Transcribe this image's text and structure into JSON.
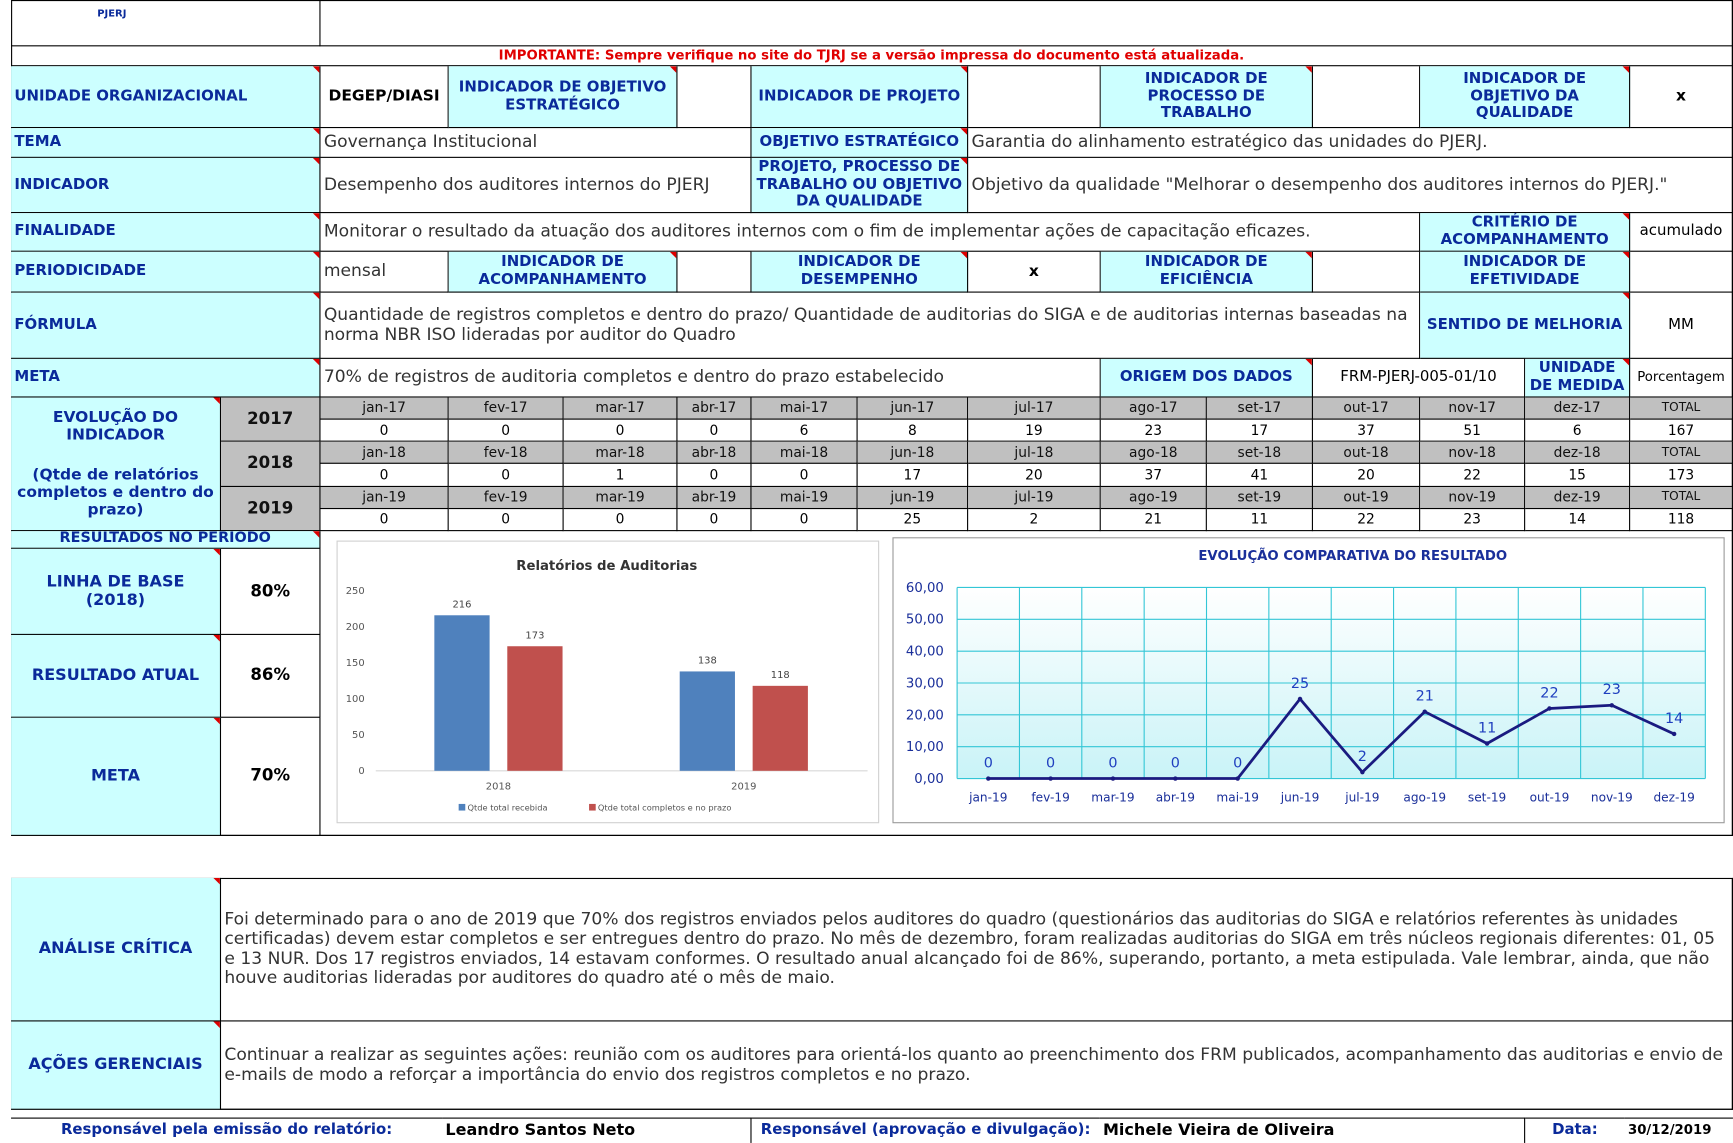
{
  "header": {
    "logo": "PJERJ",
    "notice": "IMPORTANTE: Sempre verifique no site do TJRJ se a versão impressa do documento está atualizada."
  },
  "form": {
    "unidade_label": "UNIDADE ORGANIZACIONAL",
    "unidade": "DEGEP/DIASI",
    "obj_estrategico_label": "INDICADOR DE OBJETIVO ESTRATÉGICO",
    "projeto_label": "INDICADOR DE PROJETO",
    "processo_label": "INDICADOR DE PROCESSO DE TRABALHO",
    "qualidade_label": "INDICADOR DE OBJETIVO DA QUALIDADE",
    "qualidade_mark": "x",
    "tema_label": "TEMA",
    "tema": "Governança Institucional",
    "objetivo_label": "OBJETIVO ESTRATÉGICO",
    "objetivo": "Garantia do alinhamento estratégico das unidades do PJERJ.",
    "indicador_label": "INDICADOR",
    "indicador": "Desempenho dos auditores internos do PJERJ",
    "projeto_processo_label": "PROJETO, PROCESSO DE TRABALHO OU OBJETIVO DA QUALIDADE",
    "projeto_processo": "Objetivo da qualidade \"Melhorar o desempenho dos auditores internos do PJERJ.\"",
    "finalidade_label": "FINALIDADE",
    "finalidade": "Monitorar o resultado da atuação dos auditores internos com o fim de implementar ações de capacitação eficazes.",
    "criterio_label": "CRITÉRIO DE ACOMPANHAMENTO",
    "criterio": "acumulado",
    "periodicidade_label": "PERIODICIDADE",
    "periodicidade": "mensal",
    "acompanhamento_label": "INDICADOR DE ACOMPANHAMENTO",
    "desempenho_label": "INDICADOR DE DESEMPENHO",
    "desempenho_mark": "x",
    "eficiencia_label": "INDICADOR DE EFICIÊNCIA",
    "efetividade_label": "INDICADOR DE EFETIVIDADE",
    "formula_label": "FÓRMULA",
    "formula": "Quantidade de registros completos e dentro do prazo/ Quantidade de auditorias do SIGA e de auditorias internas baseadas na norma NBR ISO lideradas por auditor do Quadro",
    "sentido_label": "SENTIDO DE MELHORIA",
    "sentido": "MM",
    "meta_label": "META",
    "meta": "70% de registros de auditoria completos e dentro do prazo estabelecido",
    "origem_label": "ORIGEM DOS DADOS",
    "origem": "FRM-PJERJ-005-01/10",
    "unidade_medida_label": "UNIDADE DE MEDIDA",
    "unidade_medida": "Porcentagem"
  },
  "evolution": {
    "label": "EVOLUÇÃO DO INDICADOR",
    "sublabel": "(Qtde de relatórios completos e dentro do prazo)",
    "years": [
      {
        "year": "2017",
        "months": [
          "jan-17",
          "fev-17",
          "mar-17",
          "abr-17",
          "mai-17",
          "jun-17",
          "jul-17",
          "ago-17",
          "set-17",
          "out-17",
          "nov-17",
          "dez-17",
          "TOTAL"
        ],
        "values": [
          0,
          0,
          0,
          0,
          6,
          8,
          19,
          23,
          17,
          37,
          51,
          6,
          167
        ]
      },
      {
        "year": "2018",
        "months": [
          "jan-18",
          "fev-18",
          "mar-18",
          "abr-18",
          "mai-18",
          "jun-18",
          "jul-18",
          "ago-18",
          "set-18",
          "out-18",
          "nov-18",
          "dez-18",
          "TOTAL"
        ],
        "values": [
          0,
          0,
          1,
          0,
          0,
          17,
          20,
          37,
          41,
          20,
          22,
          15,
          173
        ]
      },
      {
        "year": "2019",
        "months": [
          "jan-19",
          "fev-19",
          "mar-19",
          "abr-19",
          "mai-19",
          "jun-19",
          "jul-19",
          "ago-19",
          "set-19",
          "out-19",
          "nov-19",
          "dez-19",
          "TOTAL"
        ],
        "values": [
          0,
          0,
          0,
          0,
          0,
          25,
          2,
          21,
          11,
          22,
          23,
          14,
          118
        ]
      }
    ]
  },
  "results": {
    "label": "RESULTADOS NO PERÍODO",
    "items": [
      {
        "label": "LINHA DE  BASE (2018)",
        "value": "80%"
      },
      {
        "label": "RESULTADO ATUAL",
        "value": "86%"
      },
      {
        "label": "META",
        "value": "70%"
      }
    ]
  },
  "chart_data": [
    {
      "type": "bar",
      "title": "Relatórios de Auditorias",
      "categories": [
        "2018",
        "2019"
      ],
      "series": [
        {
          "name": "Qtde total recebida",
          "color": "#4f81bd",
          "values": [
            216,
            138
          ]
        },
        {
          "name": "Qtde total completos e no prazo",
          "color": "#c0504d",
          "values": [
            173,
            118
          ]
        }
      ],
      "ylim": [
        0,
        250
      ],
      "yticks": [
        0,
        50,
        100,
        150,
        200,
        250
      ],
      "legend": "bottom"
    },
    {
      "type": "line",
      "title": "EVOLUÇÃO COMPARATIVA DO RESULTADO",
      "categories": [
        "jan-19",
        "fev-19",
        "mar-19",
        "abr-19",
        "mai-19",
        "jun-19",
        "jul-19",
        "ago-19",
        "set-19",
        "out-19",
        "nov-19",
        "dez-19"
      ],
      "series": [
        {
          "color": "#1a1a80",
          "values": [
            0,
            0,
            0,
            0,
            0,
            25,
            2,
            21,
            11,
            22,
            23,
            14
          ]
        }
      ],
      "ylim": [
        0,
        60
      ],
      "yticks": [
        {
          "value": 0,
          "label": "0,00"
        },
        {
          "value": 10,
          "label": "10,00"
        },
        {
          "value": 20,
          "label": "20,00"
        },
        {
          "value": 30,
          "label": "30,00"
        },
        {
          "value": 40,
          "label": "40,00"
        },
        {
          "value": 50,
          "label": "50,00"
        },
        {
          "value": 60,
          "label": "60,00"
        }
      ],
      "grid": true
    }
  ],
  "analysis": {
    "critica_label": "ANÁLISE CRÍTICA",
    "critica": "Foi determinado para o ano de 2019 que 70% dos registros enviados pelos auditores do quadro (questionários das auditorias do SIGA e relatórios referentes às unidades certificadas) devem estar completos e ser entregues dentro do prazo. No mês de dezembro, foram realizadas auditorias do SIGA em três núcleos regionais diferentes: 01, 05 e 13 NUR. Dos 17 registros enviados, 14 estavam conformes. O resultado anual alcançado foi de 86%, superando, portanto, a meta estipulada. Vale lembrar, ainda, que não houve auditorias lideradas por auditores do quadro até o mês de maio.",
    "acoes_label": "AÇÕES GERENCIAIS",
    "acoes": "Continuar a realizar as seguintes ações: reunião com os auditores para orientá-los quanto ao preenchimento dos FRM publicados, acompanhamento das auditorias e envio de e-mails de modo a reforçar a importância do envio dos registros completos e no prazo."
  },
  "footer": {
    "emissao_label": "Responsável pela emissão do relatório:",
    "emissao": "Leandro Santos Neto",
    "aprovacao_label": "Responsável (aprovação e divulgação):",
    "aprovacao": "Michele Vieira de Oliveira",
    "data_label": "Data:",
    "data": "30/12/2019"
  }
}
